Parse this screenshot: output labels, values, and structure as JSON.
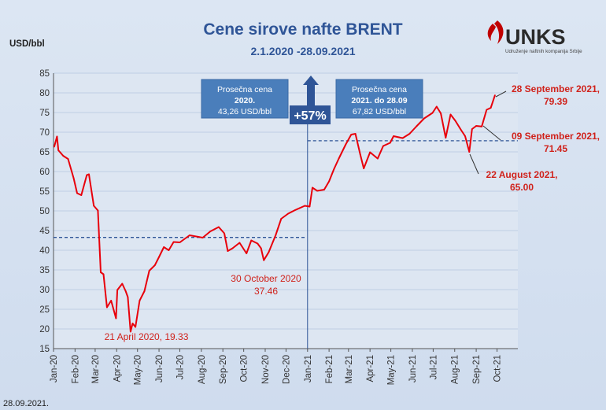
{
  "chart_data": {
    "type": "line",
    "title": "Cene sirove nafte BRENT",
    "subtitle": "2.1.2020 -28.09.2021",
    "ylabel": "USD/bbl",
    "ylim": [
      15,
      85
    ],
    "yticks": [
      15,
      20,
      25,
      30,
      35,
      40,
      45,
      50,
      55,
      60,
      65,
      70,
      75,
      80,
      85
    ],
    "xlim": [
      "2020-01-01",
      "2021-10-31"
    ],
    "xtick_labels": [
      "Jan-20",
      "Feb-20",
      "Mar-20",
      "Apr-20",
      "May-20",
      "Jun-20",
      "Jul-20",
      "Aug-20",
      "Sep-20",
      "Oct-20",
      "Nov-20",
      "Dec-20",
      "Jan-21",
      "Feb-21",
      "Mar-21",
      "Apr-21",
      "May-21",
      "Jun-21",
      "Jul-21",
      "Aug-21",
      "Sep-21",
      "Oct-21"
    ],
    "xtick_dates": [
      "2020-01-01",
      "2020-02-01",
      "2020-03-01",
      "2020-04-01",
      "2020-05-01",
      "2020-06-01",
      "2020-07-01",
      "2020-08-01",
      "2020-09-01",
      "2020-10-01",
      "2020-11-01",
      "2020-12-01",
      "2021-01-01",
      "2021-02-01",
      "2021-03-01",
      "2021-04-01",
      "2021-05-01",
      "2021-06-01",
      "2021-07-01",
      "2021-08-01",
      "2021-09-01",
      "2021-10-01"
    ],
    "grid": true,
    "series": [
      {
        "color": "#e8000b",
        "x": [
          "2020-01-02",
          "2020-01-06",
          "2020-01-08",
          "2020-01-15",
          "2020-01-22",
          "2020-01-30",
          "2020-02-04",
          "2020-02-10",
          "2020-02-18",
          "2020-02-21",
          "2020-02-28",
          "2020-03-05",
          "2020-03-09",
          "2020-03-13",
          "2020-03-18",
          "2020-03-24",
          "2020-03-31",
          "2020-04-02",
          "2020-04-09",
          "2020-04-14",
          "2020-04-17",
          "2020-04-21",
          "2020-04-24",
          "2020-04-28",
          "2020-05-04",
          "2020-05-11",
          "2020-05-18",
          "2020-05-26",
          "2020-06-01",
          "2020-06-08",
          "2020-06-15",
          "2020-06-22",
          "2020-07-01",
          "2020-07-15",
          "2020-08-03",
          "2020-08-14",
          "2020-08-26",
          "2020-09-03",
          "2020-09-08",
          "2020-09-15",
          "2020-09-25",
          "2020-10-05",
          "2020-10-12",
          "2020-10-21",
          "2020-10-26",
          "2020-10-30",
          "2020-11-06",
          "2020-11-16",
          "2020-11-24",
          "2020-12-04",
          "2020-12-14",
          "2020-12-28",
          "2021-01-04",
          "2021-01-08",
          "2021-01-15",
          "2021-01-25",
          "2021-02-01",
          "2021-02-08",
          "2021-02-15",
          "2021-02-25",
          "2021-03-05",
          "2021-03-11",
          "2021-03-18",
          "2021-03-23",
          "2021-04-01",
          "2021-04-12",
          "2021-04-20",
          "2021-04-30",
          "2021-05-05",
          "2021-05-18",
          "2021-05-28",
          "2021-06-07",
          "2021-06-18",
          "2021-06-30",
          "2021-07-06",
          "2021-07-12",
          "2021-07-19",
          "2021-07-26",
          "2021-08-02",
          "2021-08-10",
          "2021-08-16",
          "2021-08-22",
          "2021-08-26",
          "2021-09-01",
          "2021-09-09",
          "2021-09-16",
          "2021-09-22",
          "2021-09-28"
        ],
        "values": [
          66.3,
          68.9,
          65.4,
          64.0,
          63.2,
          58.3,
          54.5,
          54.0,
          59.1,
          59.3,
          51.3,
          50.1,
          34.4,
          33.9,
          25.5,
          27.2,
          22.7,
          29.9,
          31.5,
          29.6,
          28.1,
          19.33,
          21.4,
          20.5,
          27.2,
          29.6,
          34.8,
          36.2,
          38.3,
          40.8,
          40.0,
          42.1,
          42.0,
          43.8,
          43.2,
          44.8,
          45.9,
          44.3,
          39.8,
          40.5,
          41.9,
          39.2,
          42.5,
          41.7,
          40.5,
          37.46,
          39.5,
          43.8,
          48.0,
          49.3,
          50.2,
          51.3,
          51.1,
          55.9,
          55.1,
          55.4,
          57.5,
          60.6,
          63.3,
          66.9,
          69.4,
          69.6,
          64.3,
          60.8,
          64.9,
          63.3,
          66.5,
          67.3,
          69.0,
          68.5,
          69.6,
          71.5,
          73.5,
          74.9,
          76.5,
          74.8,
          68.6,
          74.5,
          72.9,
          70.6,
          69.0,
          65.0,
          70.8,
          71.6,
          71.45,
          75.7,
          76.2,
          79.39
        ]
      }
    ],
    "avg_lines": [
      {
        "y": 43.26,
        "from": "2020-01-01",
        "to": "2020-12-31",
        "color": "#2f5597"
      },
      {
        "y": 67.82,
        "from": "2021-01-01",
        "to": "2021-10-31",
        "color": "#2f5597"
      }
    ],
    "divider_date": "2021-01-01",
    "annotations": [
      {
        "id": "apr20",
        "line1": "21 April 2020, 19.33",
        "line2": ""
      },
      {
        "id": "oct20",
        "line1": "30 October 2020",
        "line2": "37.46"
      },
      {
        "id": "aug21",
        "line1": "22 August 2021,",
        "line2": "65.00"
      },
      {
        "id": "sep09",
        "line1": "09 September 2021,",
        "line2": "71.45"
      },
      {
        "id": "sep28",
        "line1": "28 September 2021,",
        "line2": "79.39"
      }
    ],
    "avg_box_2020": {
      "line1": "Prosečna cena",
      "line2": "2020.",
      "line3": "43,26 USD/bbl"
    },
    "avg_box_2021": {
      "line1": "Prosečna cena",
      "line2": "2021. do 28.09",
      "line3": "67,82 USD/bbl"
    },
    "change_label": "+57%"
  },
  "logo": {
    "text": "UNKS",
    "tagline": "Udruženje naftnih kompanija Srbije"
  },
  "footer_date": "28.09.2021."
}
